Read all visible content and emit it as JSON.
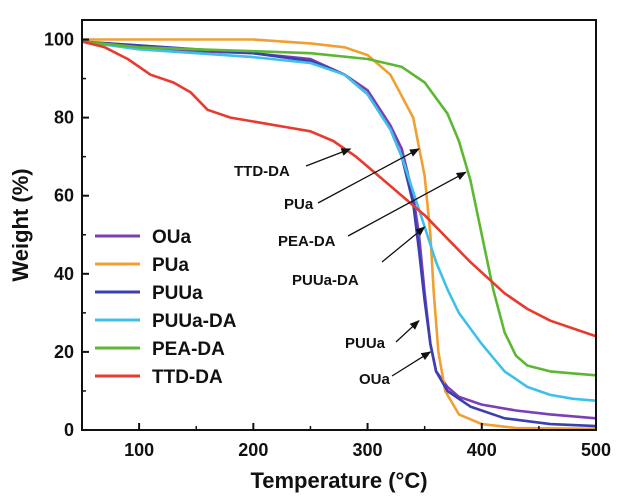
{
  "chart_data": {
    "type": "line",
    "xlabel": "Temperature (°C)",
    "ylabel": "Weight (%)",
    "xlim": [
      50,
      500
    ],
    "ylim": [
      0,
      105
    ],
    "xticks": [
      100,
      200,
      300,
      400,
      500
    ],
    "yticks": [
      0,
      20,
      40,
      60,
      80,
      100
    ],
    "legend_position": "bottom-left",
    "grid": false,
    "series": [
      {
        "name": "OUa",
        "color": "#7b3fb5",
        "points": [
          [
            50,
            99.5
          ],
          [
            100,
            98
          ],
          [
            150,
            97
          ],
          [
            200,
            96.5
          ],
          [
            250,
            95
          ],
          [
            280,
            91
          ],
          [
            300,
            87
          ],
          [
            320,
            78
          ],
          [
            330,
            72
          ],
          [
            340,
            60
          ],
          [
            345,
            50
          ],
          [
            350,
            35
          ],
          [
            355,
            22
          ],
          [
            360,
            15
          ],
          [
            370,
            11
          ],
          [
            380,
            8.5
          ],
          [
            400,
            6.5
          ],
          [
            430,
            5
          ],
          [
            460,
            4
          ],
          [
            500,
            3
          ]
        ]
      },
      {
        "name": "PUa",
        "color": "#f0a030",
        "points": [
          [
            50,
            100
          ],
          [
            100,
            100
          ],
          [
            150,
            100
          ],
          [
            200,
            100
          ],
          [
            250,
            99
          ],
          [
            280,
            98
          ],
          [
            300,
            96
          ],
          [
            320,
            91
          ],
          [
            340,
            80
          ],
          [
            350,
            65
          ],
          [
            355,
            50
          ],
          [
            358,
            35
          ],
          [
            362,
            20
          ],
          [
            368,
            10
          ],
          [
            380,
            4
          ],
          [
            400,
            1.5
          ],
          [
            430,
            0.5
          ],
          [
            500,
            0.3
          ]
        ]
      },
      {
        "name": "PUUa",
        "color": "#3b3fb0",
        "points": [
          [
            50,
            99.5
          ],
          [
            100,
            98.5
          ],
          [
            150,
            97.5
          ],
          [
            200,
            96.5
          ],
          [
            250,
            94.5
          ],
          [
            280,
            91
          ],
          [
            300,
            86
          ],
          [
            320,
            77
          ],
          [
            330,
            70
          ],
          [
            340,
            58
          ],
          [
            345,
            46
          ],
          [
            350,
            33
          ],
          [
            355,
            22
          ],
          [
            360,
            15
          ],
          [
            370,
            10
          ],
          [
            390,
            6
          ],
          [
            420,
            3
          ],
          [
            460,
            1.5
          ],
          [
            500,
            1
          ]
        ]
      },
      {
        "name": "PUUa-DA",
        "color": "#3fc0e8",
        "points": [
          [
            50,
            99.5
          ],
          [
            100,
            97.5
          ],
          [
            150,
            96.5
          ],
          [
            200,
            95.5
          ],
          [
            250,
            94
          ],
          [
            280,
            91
          ],
          [
            300,
            86
          ],
          [
            320,
            77
          ],
          [
            330,
            70
          ],
          [
            340,
            61
          ],
          [
            350,
            52
          ],
          [
            360,
            43
          ],
          [
            370,
            36
          ],
          [
            380,
            30
          ],
          [
            400,
            22
          ],
          [
            420,
            15
          ],
          [
            440,
            11
          ],
          [
            460,
            9
          ],
          [
            480,
            8
          ],
          [
            500,
            7.5
          ]
        ]
      },
      {
        "name": "PEA-DA",
        "color": "#5cb832",
        "points": [
          [
            50,
            99.5
          ],
          [
            100,
            98
          ],
          [
            150,
            97.5
          ],
          [
            200,
            97
          ],
          [
            250,
            96.5
          ],
          [
            300,
            95
          ],
          [
            330,
            93
          ],
          [
            350,
            89
          ],
          [
            370,
            81
          ],
          [
            380,
            74
          ],
          [
            390,
            64
          ],
          [
            400,
            50
          ],
          [
            410,
            36
          ],
          [
            420,
            25
          ],
          [
            430,
            19
          ],
          [
            440,
            16.5
          ],
          [
            460,
            15
          ],
          [
            480,
            14.5
          ],
          [
            500,
            14
          ]
        ]
      },
      {
        "name": "TTD-DA",
        "color": "#e83a2e",
        "points": [
          [
            50,
            99.5
          ],
          [
            70,
            98
          ],
          [
            90,
            95
          ],
          [
            110,
            91
          ],
          [
            130,
            89
          ],
          [
            145,
            86.5
          ],
          [
            160,
            82
          ],
          [
            180,
            80
          ],
          [
            200,
            79
          ],
          [
            230,
            77.5
          ],
          [
            250,
            76.5
          ],
          [
            270,
            74
          ],
          [
            290,
            70
          ],
          [
            310,
            65
          ],
          [
            330,
            60
          ],
          [
            350,
            55
          ],
          [
            370,
            49
          ],
          [
            390,
            43
          ],
          [
            405,
            39
          ],
          [
            420,
            35
          ],
          [
            440,
            31
          ],
          [
            460,
            28
          ],
          [
            480,
            26
          ],
          [
            500,
            24
          ]
        ]
      }
    ],
    "annotations": [
      {
        "text": "TTD-DA",
        "tip": [
          285,
          72
        ]
      },
      {
        "text": "PUa",
        "tip": [
          345,
          72
        ]
      },
      {
        "text": "PEA-DA",
        "tip": [
          386,
          66
        ]
      },
      {
        "text": "PUUa-DA",
        "tip": [
          350,
          52
        ]
      },
      {
        "text": "PUUa",
        "tip": [
          345,
          28
        ]
      },
      {
        "text": "OUa",
        "tip": [
          355,
          20
        ]
      }
    ]
  }
}
